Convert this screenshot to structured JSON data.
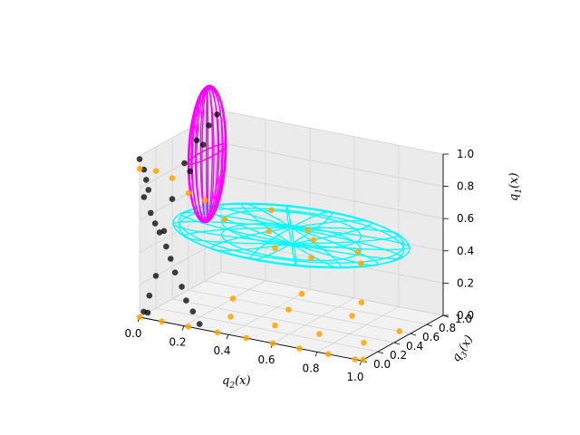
{
  "chart_data": {
    "type": "scatter",
    "projection": "3d",
    "axes": {
      "x": {
        "label_main": "q",
        "label_sub": "2",
        "label_tail": "(x)",
        "ticks": [
          "0.0",
          "0.2",
          "0.4",
          "0.6",
          "0.8",
          "1.0"
        ],
        "lim": [
          0,
          1
        ]
      },
      "y": {
        "label_main": "q",
        "label_sub": "3",
        "label_tail": "(x)",
        "ticks": [
          "0.0",
          "0.2",
          "0.4",
          "0.6",
          "0.8",
          "1.0"
        ],
        "lim": [
          0,
          1
        ]
      },
      "z": {
        "label_main": "q",
        "label_sub": "1",
        "label_tail": "(x)",
        "ticks": [
          "0.0",
          "0.2",
          "0.4",
          "0.6",
          "0.8",
          "1.0"
        ],
        "lim": [
          0,
          1
        ]
      }
    },
    "grid": true,
    "legend": "none",
    "colors": {
      "pane": "#f2f2f2",
      "pane_wall": "#ebebeb",
      "grid": "#d4d4d4",
      "black_points": "#000000",
      "orange_points": "#ffa500",
      "cyan_ellipsoid": "#00ffff",
      "magenta_ellipsoid": "#ff00ff"
    },
    "series": [
      {
        "color_key": "black_points",
        "points": [
          [
            0.0,
            0.0,
            0.98
          ],
          [
            0.02,
            0.0,
            0.92
          ],
          [
            0.03,
            0.0,
            0.86
          ],
          [
            0.04,
            0.0,
            0.8
          ],
          [
            0.02,
            0.0,
            0.75
          ],
          [
            0.05,
            0.0,
            0.66
          ],
          [
            0.07,
            0.0,
            0.6
          ],
          [
            0.09,
            0.0,
            0.55
          ],
          [
            0.12,
            0.0,
            0.47
          ],
          [
            0.14,
            0.0,
            0.4
          ],
          [
            0.16,
            0.0,
            0.32
          ],
          [
            0.19,
            0.0,
            0.24
          ],
          [
            0.21,
            0.0,
            0.16
          ],
          [
            0.24,
            0.0,
            0.1
          ],
          [
            0.27,
            0.0,
            0.03
          ],
          [
            0.0,
            0.1,
            0.0
          ],
          [
            0.0,
            0.05,
            0.02
          ],
          [
            0.0,
            0.2,
            0.2
          ],
          [
            0.0,
            0.3,
            0.45
          ],
          [
            0.0,
            0.4,
            0.62
          ],
          [
            0.0,
            0.55,
            0.8
          ],
          [
            0.0,
            0.7,
            0.9
          ],
          [
            0.0,
            0.85,
            0.95
          ],
          [
            0.0,
            0.95,
            0.99
          ],
          [
            0.0,
            0.62,
            0.73
          ],
          [
            0.0,
            0.78,
            0.85
          ],
          [
            0.0,
            0.12,
            0.1
          ]
        ]
      },
      {
        "color_key": "orange_points",
        "points": [
          [
            0.0,
            0.0,
            0.0
          ],
          [
            0.1,
            0.0,
            0.0
          ],
          [
            0.22,
            0.0,
            0.0
          ],
          [
            0.35,
            0.0,
            0.0
          ],
          [
            0.48,
            0.0,
            0.0
          ],
          [
            0.6,
            0.0,
            0.0
          ],
          [
            0.72,
            0.0,
            0.0
          ],
          [
            0.85,
            0.0,
            0.0
          ],
          [
            0.97,
            0.0,
            0.0
          ],
          [
            1.0,
            0.02,
            0.0
          ],
          [
            0.3,
            0.3,
            0.0
          ],
          [
            0.5,
            0.3,
            0.0
          ],
          [
            0.7,
            0.3,
            0.0
          ],
          [
            0.9,
            0.3,
            0.0
          ],
          [
            0.2,
            0.6,
            0.0
          ],
          [
            0.45,
            0.6,
            0.0
          ],
          [
            0.7,
            0.7,
            0.0
          ],
          [
            0.95,
            0.6,
            0.0
          ],
          [
            0.4,
            0.9,
            0.0
          ],
          [
            0.65,
            0.95,
            0.0
          ],
          [
            0.0,
            0.0,
            0.92
          ],
          [
            0.0,
            0.2,
            0.85
          ],
          [
            0.0,
            0.4,
            0.75
          ],
          [
            0.0,
            0.6,
            0.6
          ],
          [
            0.0,
            0.8,
            0.5
          ],
          [
            0.2,
            0.5,
            0.52
          ],
          [
            0.4,
            0.5,
            0.5
          ],
          [
            0.6,
            0.5,
            0.5
          ],
          [
            0.8,
            0.5,
            0.48
          ],
          [
            0.5,
            0.3,
            0.48
          ],
          [
            0.5,
            0.7,
            0.48
          ],
          [
            0.7,
            0.2,
            0.5
          ],
          [
            0.3,
            0.8,
            0.52
          ],
          [
            0.85,
            0.4,
            0.45
          ]
        ]
      }
    ],
    "ellipsoids": [
      {
        "color_key": "cyan_ellipsoid",
        "center": [
          0.5,
          0.5,
          0.5
        ],
        "radii": [
          0.5,
          0.5,
          0.05
        ],
        "meridians": 8,
        "parallels": 4
      },
      {
        "color_key": "magenta_ellipsoid",
        "center": [
          0.04,
          0.72,
          0.82
        ],
        "radii": [
          0.03,
          0.22,
          0.42
        ],
        "meridians": 10,
        "parallels": 0
      }
    ]
  }
}
